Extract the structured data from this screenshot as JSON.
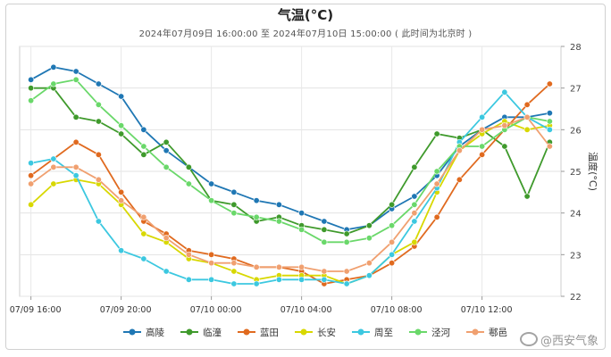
{
  "chart_data": {
    "type": "line",
    "title": "气温(°C)",
    "subtitle": "2024年07月09日 16:00:00 至 2024年07月10日 15:00:00 ( 此时间为北京时 )",
    "ylabel": "温度(°C)",
    "xlabel": "",
    "ylim": [
      22,
      28
    ],
    "yticks": [
      22,
      23,
      24,
      25,
      26,
      27,
      28
    ],
    "x": [
      "07/09 16:00",
      "07/09 17:00",
      "07/09 18:00",
      "07/09 19:00",
      "07/09 20:00",
      "07/09 21:00",
      "07/09 22:00",
      "07/09 23:00",
      "07/10 00:00",
      "07/10 01:00",
      "07/10 02:00",
      "07/10 03:00",
      "07/10 04:00",
      "07/10 05:00",
      "07/10 06:00",
      "07/10 07:00",
      "07/10 08:00",
      "07/10 09:00",
      "07/10 10:00",
      "07/10 11:00",
      "07/10 12:00",
      "07/10 13:00",
      "07/10 14:00",
      "07/10 15:00"
    ],
    "xtick_labels": [
      "07/09 16:00",
      "07/09 20:00",
      "07/10 00:00",
      "07/10 04:00",
      "07/10 08:00",
      "07/10 12:00"
    ],
    "xtick_index": [
      0,
      4,
      8,
      12,
      16,
      20
    ],
    "grid": true,
    "legend_position": "bottom",
    "series": [
      {
        "name": "高陵",
        "color": "#1f77b4",
        "values": [
          27.2,
          27.5,
          27.4,
          27.1,
          26.8,
          26.0,
          25.5,
          25.1,
          24.7,
          24.5,
          24.3,
          24.2,
          24.0,
          23.8,
          23.6,
          23.7,
          24.1,
          24.4,
          24.9,
          25.6,
          26.0,
          26.3,
          26.3,
          26.4
        ]
      },
      {
        "name": "临潼",
        "color": "#3f9a2c",
        "values": [
          27.0,
          27.0,
          26.3,
          26.2,
          25.9,
          25.4,
          25.7,
          25.1,
          24.3,
          24.2,
          23.8,
          23.9,
          23.7,
          23.6,
          23.5,
          23.7,
          24.2,
          25.1,
          25.9,
          25.8,
          26.0,
          25.6,
          24.4,
          25.7
        ]
      },
      {
        "name": "蓝田",
        "color": "#e06a1f",
        "values": [
          24.9,
          25.3,
          25.7,
          25.4,
          24.5,
          23.8,
          23.5,
          23.1,
          23.0,
          22.9,
          22.7,
          22.7,
          22.6,
          22.3,
          22.4,
          22.5,
          22.8,
          23.2,
          23.9,
          24.8,
          25.4,
          26.0,
          26.6,
          27.1
        ]
      },
      {
        "name": "长安",
        "color": "#d8d800",
        "values": [
          24.2,
          24.7,
          24.8,
          24.7,
          24.2,
          23.5,
          23.3,
          22.9,
          22.8,
          22.6,
          22.4,
          22.5,
          22.5,
          22.5,
          22.3,
          22.5,
          23.0,
          23.3,
          24.5,
          25.5,
          25.9,
          26.2,
          26.0,
          26.1
        ]
      },
      {
        "name": "周至",
        "color": "#3cc8e0",
        "values": [
          25.2,
          25.3,
          24.9,
          23.8,
          23.1,
          22.9,
          22.6,
          22.4,
          22.4,
          22.3,
          22.3,
          22.4,
          22.4,
          22.4,
          22.3,
          22.5,
          23.0,
          23.8,
          24.6,
          25.7,
          26.3,
          26.9,
          26.3,
          26.0
        ]
      },
      {
        "name": "泾河",
        "color": "#6ad86a",
        "values": [
          26.7,
          27.1,
          27.2,
          26.6,
          26.1,
          25.6,
          25.1,
          24.7,
          24.3,
          24.0,
          23.9,
          23.8,
          23.6,
          23.3,
          23.3,
          23.4,
          23.7,
          24.2,
          25.0,
          25.6,
          25.6,
          26.0,
          26.3,
          26.2
        ]
      },
      {
        "name": "鄠邑",
        "color": "#f0a070",
        "values": [
          24.7,
          25.1,
          25.1,
          24.8,
          24.3,
          23.9,
          23.4,
          23.0,
          22.8,
          22.8,
          22.7,
          22.7,
          22.7,
          22.6,
          22.6,
          22.8,
          23.3,
          24.0,
          24.7,
          25.5,
          26.0,
          26.1,
          26.3,
          25.6
        ]
      }
    ]
  },
  "watermark": "@西安气象"
}
